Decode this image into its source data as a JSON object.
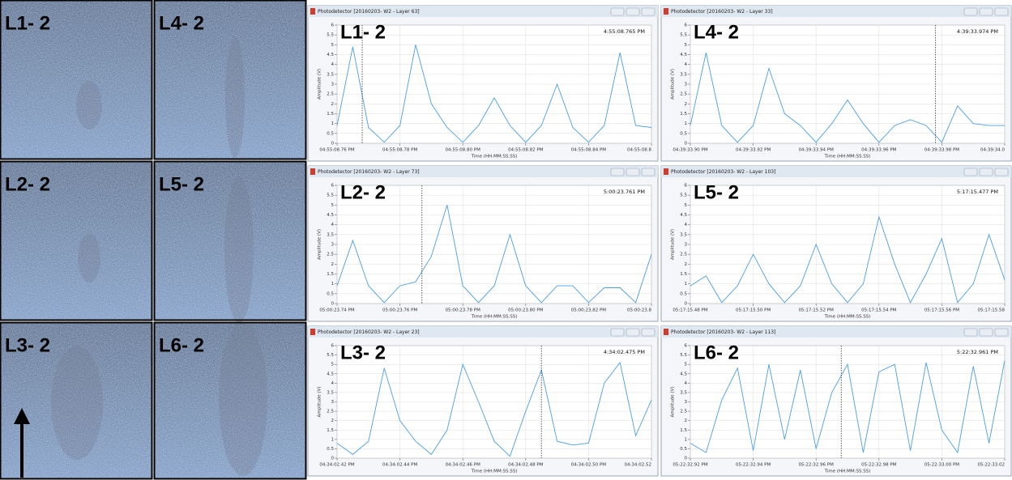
{
  "photos": [
    {
      "label": "L1- 2"
    },
    {
      "label": "L4- 2"
    },
    {
      "label": "L2- 2"
    },
    {
      "label": "L5- 2"
    },
    {
      "label": "L3- 2"
    },
    {
      "label": "L6- 2"
    }
  ],
  "chart_data": [
    {
      "type": "line",
      "title": "Photodetector [20160203- W2 - Layer 63]",
      "annotation": "L1- 2",
      "timestamp": "4:55:08.765 PM",
      "y_label": "Amplitude (V)",
      "x_label": "Time (HH:MM:SS.SS)",
      "color": "#4a9fe0",
      "x": [
        8.76,
        8.765,
        8.77,
        8.775,
        8.78,
        8.785,
        8.79,
        8.795,
        8.8,
        8.805,
        8.81,
        8.815,
        8.82,
        8.825,
        8.83,
        8.835,
        8.84,
        8.845,
        8.85,
        8.855,
        8.86
      ],
      "values": [
        0.9,
        4.9,
        0.8,
        0.05,
        0.9,
        5.0,
        2.0,
        0.8,
        0.05,
        0.9,
        2.3,
        0.9,
        0.05,
        0.9,
        3.0,
        0.8,
        0.05,
        0.9,
        4.6,
        0.9,
        0.8
      ],
      "xlim": [
        8.76,
        8.86
      ],
      "xticks": [
        {
          "value": 8.76,
          "label": "04:55:08.76 PM"
        },
        {
          "value": 8.78,
          "label": "04:55:08.78 PM"
        },
        {
          "value": 8.8,
          "label": "04:55:08.80 PM"
        },
        {
          "value": 8.82,
          "label": "04:55:08.82 PM"
        },
        {
          "value": 8.84,
          "label": "04:55:08.84 PM"
        },
        {
          "value": 8.86,
          "label": "04:55:08.8"
        }
      ],
      "ylim": [
        0,
        6
      ],
      "yticks": [
        0,
        0.5,
        1,
        1.5,
        2,
        2.5,
        3,
        3.5,
        4,
        4.5,
        5,
        5.5,
        6
      ],
      "grid": true
    },
    {
      "type": "line",
      "title": "Photodetector [20160203- W2 - Layer 33]",
      "annotation": "L4- 2",
      "timestamp": "4:39:33.974 PM",
      "y_label": "Amplitude (V)",
      "x_label": "Time (HH:MM:SS.SS)",
      "color": "#4a9fe0",
      "x": [
        33.9,
        33.905,
        33.91,
        33.915,
        33.92,
        33.925,
        33.93,
        33.935,
        33.94,
        33.945,
        33.95,
        33.955,
        33.96,
        33.965,
        33.97,
        33.975,
        33.98,
        33.985,
        33.99,
        33.995,
        34
      ],
      "values": [
        0.9,
        4.6,
        0.9,
        0.05,
        0.9,
        3.8,
        1.5,
        0.9,
        0.05,
        1.0,
        2.2,
        1.0,
        0.05,
        0.9,
        1.2,
        0.9,
        0.05,
        1.9,
        1.0,
        0.9,
        0.9
      ],
      "xlim": [
        33.9,
        34
      ],
      "xticks": [
        {
          "value": 33.9,
          "label": "04:39:33.90 PM"
        },
        {
          "value": 33.92,
          "label": "04:39:33.92 PM"
        },
        {
          "value": 33.94,
          "label": "04:39:33.94 PM"
        },
        {
          "value": 33.96,
          "label": "04:39:33.96 PM"
        },
        {
          "value": 33.98,
          "label": "04:39:33.98 PM"
        },
        {
          "value": 34,
          "label": "04:39:34.0"
        }
      ],
      "ylim": [
        0,
        6
      ],
      "yticks": [
        0,
        0.5,
        1,
        1.5,
        2,
        2.5,
        3,
        3.5,
        4,
        4.5,
        5,
        5.5,
        6
      ],
      "grid": true
    },
    {
      "type": "line",
      "title": "Photodetector [20160203- W2 - Layer 73]",
      "annotation": "L2- 2",
      "timestamp": "5:00:23.761 PM",
      "y_label": "Amplitude (V)",
      "x_label": "Time (HH:MM:SS.SS)",
      "color": "#4a9fe0",
      "x": [
        23.74,
        23.745,
        23.75,
        23.755,
        23.76,
        23.765,
        23.77,
        23.775,
        23.78,
        23.785,
        23.79,
        23.795,
        23.8,
        23.805,
        23.81,
        23.815,
        23.82,
        23.825,
        23.83,
        23.835,
        23.84
      ],
      "values": [
        0.9,
        3.2,
        0.9,
        0.05,
        0.9,
        1.1,
        2.4,
        5.0,
        0.9,
        0.05,
        0.9,
        3.5,
        0.9,
        0.05,
        0.9,
        0.9,
        0.05,
        0.8,
        0.8,
        0.05,
        2.5
      ],
      "xlim": [
        23.74,
        23.84
      ],
      "xticks": [
        {
          "value": 23.74,
          "label": "05:00:23.74 PM"
        },
        {
          "value": 23.76,
          "label": "05:00:23.76 PM"
        },
        {
          "value": 23.78,
          "label": "05:00:23.78 PM"
        },
        {
          "value": 23.8,
          "label": "05:00:23.80 PM"
        },
        {
          "value": 23.82,
          "label": "05:00:23.82 PM"
        },
        {
          "value": 23.84,
          "label": "05:00:23.8"
        }
      ],
      "ylim": [
        0,
        6
      ],
      "yticks": [
        0,
        0.5,
        1,
        1.5,
        2,
        2.5,
        3,
        3.5,
        4,
        4.5,
        5,
        5.5,
        6
      ],
      "grid": true
    },
    {
      "type": "line",
      "title": "Photodetector [20160203- W2 - Layer 103]",
      "annotation": "L5- 2",
      "timestamp": "5:17:15.477 PM",
      "y_label": "Amplitude (V)",
      "x_label": "Time (HH:MM:SS.SS)",
      "color": "#4a9fe0",
      "x": [
        15.48,
        15.485,
        15.49,
        15.495,
        15.5,
        15.505,
        15.51,
        15.515,
        15.52,
        15.525,
        15.53,
        15.535,
        15.54,
        15.545,
        15.55,
        15.555,
        15.56,
        15.565,
        15.57,
        15.575,
        15.58
      ],
      "values": [
        0.9,
        1.4,
        0.05,
        0.9,
        2.5,
        1.0,
        0.05,
        0.9,
        3.0,
        1.0,
        0.05,
        1.0,
        4.4,
        2.0,
        0.05,
        1.5,
        3.3,
        0.05,
        1.0,
        3.5,
        1.2
      ],
      "xlim": [
        15.48,
        15.58
      ],
      "xticks": [
        {
          "value": 15.48,
          "label": "05:17:15.48 PM"
        },
        {
          "value": 15.5,
          "label": "05:17:15.50 PM"
        },
        {
          "value": 15.52,
          "label": "05:17:15.52 PM"
        },
        {
          "value": 15.54,
          "label": "05:17:15.54 PM"
        },
        {
          "value": 15.56,
          "label": "05:17:15.56 PM"
        },
        {
          "value": 15.58,
          "label": "05:17:15.58"
        }
      ],
      "ylim": [
        0,
        6
      ],
      "yticks": [
        0,
        0.5,
        1,
        1.5,
        2,
        2.5,
        3,
        3.5,
        4,
        4.5,
        5,
        5.5,
        6
      ],
      "grid": true
    },
    {
      "type": "line",
      "title": "Photodetector [20160203- W2 - Layer 23]",
      "annotation": "L3- 2",
      "timestamp": "4:34:02.475 PM",
      "y_label": "Amplitude (V)",
      "x_label": "Time (HH:MM:SS.SS)",
      "color": "#4a9fe0",
      "x": [
        2.42,
        2.425,
        2.43,
        2.435,
        2.44,
        2.445,
        2.45,
        2.455,
        2.46,
        2.465,
        2.47,
        2.475,
        2.48,
        2.485,
        2.49,
        2.495,
        2.5,
        2.505,
        2.51,
        2.515,
        2.52
      ],
      "values": [
        0.8,
        0.2,
        0.9,
        4.8,
        2.0,
        0.9,
        0.2,
        1.5,
        5.0,
        3.0,
        0.9,
        0.1,
        2.5,
        4.7,
        0.9,
        0.7,
        0.8,
        4.0,
        5.1,
        1.2,
        3.1
      ],
      "xlim": [
        2.42,
        2.52
      ],
      "xticks": [
        {
          "value": 2.42,
          "label": "04:34:02.42 PM"
        },
        {
          "value": 2.44,
          "label": "04:34:02.44 PM"
        },
        {
          "value": 2.46,
          "label": "04:34:02.46 PM"
        },
        {
          "value": 2.48,
          "label": "04:34:02.48 PM"
        },
        {
          "value": 2.5,
          "label": "04:34:02.50 PM"
        },
        {
          "value": 2.52,
          "label": "04:34:02.52"
        }
      ],
      "ylim": [
        0,
        6
      ],
      "yticks": [
        0,
        0.5,
        1,
        1.5,
        2,
        2.5,
        3,
        3.5,
        4,
        4.5,
        5,
        5.5,
        6
      ],
      "grid": true
    },
    {
      "type": "line",
      "title": "Photodetector [20160203- W2 - Layer 113]",
      "annotation": "L6- 2",
      "timestamp": "5:22:32.961 PM",
      "y_label": "Amplitude (V)",
      "x_label": "Time (HH:MM:SS.SS)",
      "color": "#4a9fe0",
      "x": [
        32.92,
        32.925,
        32.93,
        32.935,
        32.94,
        32.945,
        32.95,
        32.955,
        32.96,
        32.965,
        32.97,
        32.975,
        32.98,
        32.985,
        32.99,
        32.995,
        33,
        33.005,
        33.01,
        33.015,
        33.02
      ],
      "values": [
        0.8,
        0.3,
        3.1,
        4.8,
        0.4,
        5.0,
        1.0,
        4.7,
        0.5,
        3.5,
        5.0,
        0.3,
        4.6,
        5.0,
        0.4,
        5.1,
        1.5,
        0.3,
        4.9,
        0.8,
        5.2
      ],
      "xlim": [
        32.92,
        33.02
      ],
      "xticks": [
        {
          "value": 32.92,
          "label": "05:22:32.92 PM"
        },
        {
          "value": 32.94,
          "label": "05:22:32.94 PM"
        },
        {
          "value": 32.96,
          "label": "05:22:32.96 PM"
        },
        {
          "value": 32.98,
          "label": "05:22:32.98 PM"
        },
        {
          "value": 33,
          "label": "05:22:33.00 PM"
        },
        {
          "value": 33.02,
          "label": "05:22:33.02"
        }
      ],
      "ylim": [
        0,
        6
      ],
      "yticks": [
        0,
        0.5,
        1,
        1.5,
        2,
        2.5,
        3,
        3.5,
        4,
        4.5,
        5,
        5.5,
        6
      ],
      "grid": true
    }
  ]
}
